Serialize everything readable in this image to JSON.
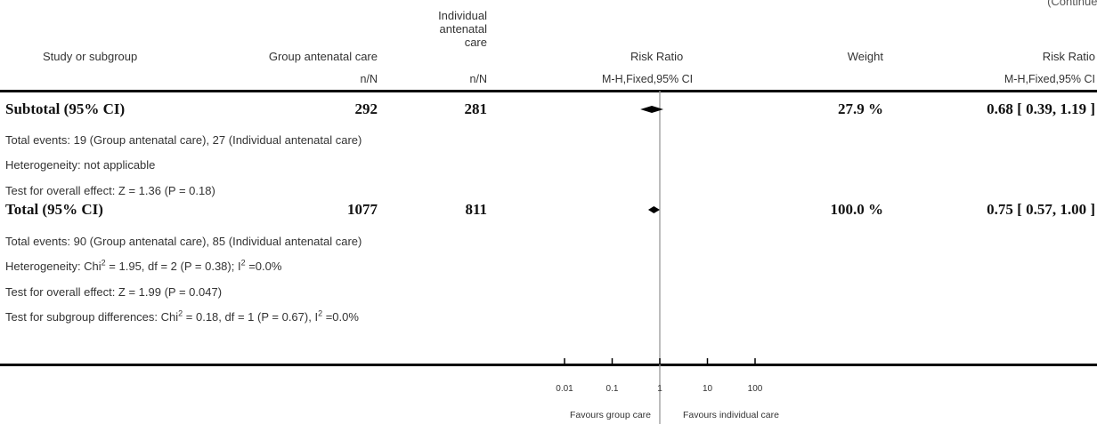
{
  "header": {
    "continued": "(Continued)",
    "col_study": "Study or subgroup",
    "col_group": "Group antenatal care",
    "col_individual_l1": "Individual",
    "col_individual_l2": "antenatal",
    "col_individual_l3": "care",
    "col_rr": "Risk Ratio",
    "col_weight": "Weight",
    "col_rr2": "Risk Ratio",
    "sub_group": "n/N",
    "sub_individual": "n/N",
    "sub_rr": "M-H,Fixed,95% CI",
    "sub_rr2": "M-H,Fixed,95% CI"
  },
  "subtotal": {
    "label": "Subtotal (95% CI)",
    "group_n": "292",
    "individual_n": "281",
    "weight": "27.9 %",
    "ci_text": "0.68 [ 0.39, 1.19 ]",
    "events": "Total events: 19 (Group antenatal care), 27 (Individual antenatal care)",
    "heterogeneity": "Heterogeneity: not applicable",
    "overall_effect": "Test for overall effect: Z = 1.36 (P = 0.18)"
  },
  "total": {
    "label": "Total (95% CI)",
    "group_n": "1077",
    "individual_n": "811",
    "weight": "100.0 %",
    "ci_text": "0.75 [ 0.57, 1.00 ]",
    "events": "Total events: 90 (Group antenatal care), 85 (Individual antenatal care)",
    "het_prefix": "Heterogeneity: Chi",
    "het_sup": "2",
    "het_mid": " = 1.95, df = 2 (P = 0.38); I",
    "het_sup2": "2",
    "het_suffix": " =0.0%",
    "overall_effect": "Test for overall effect: Z = 1.99 (P = 0.047)",
    "sg_prefix": "Test for subgroup differences: Chi",
    "sg_sup": "2",
    "sg_mid": " = 0.18, df = 1 (P = 0.67), I",
    "sg_sup2": "2",
    "sg_suffix": " =0.0%"
  },
  "chart_data": {
    "type": "forest",
    "scale": "log",
    "xlim": [
      0.01,
      100
    ],
    "ticks": [
      0.01,
      0.1,
      1,
      10,
      100
    ],
    "tick_labels": [
      "0.01",
      "0.1",
      "1",
      "10",
      "100"
    ],
    "favours_left": "Favours group care",
    "favours_right": "Favours individual care",
    "estimates": [
      {
        "name": "Subtotal (95% CI)",
        "rr": 0.68,
        "lower": 0.39,
        "upper": 1.19
      },
      {
        "name": "Total (95% CI)",
        "rr": 0.75,
        "lower": 0.57,
        "upper": 1.0
      }
    ]
  }
}
